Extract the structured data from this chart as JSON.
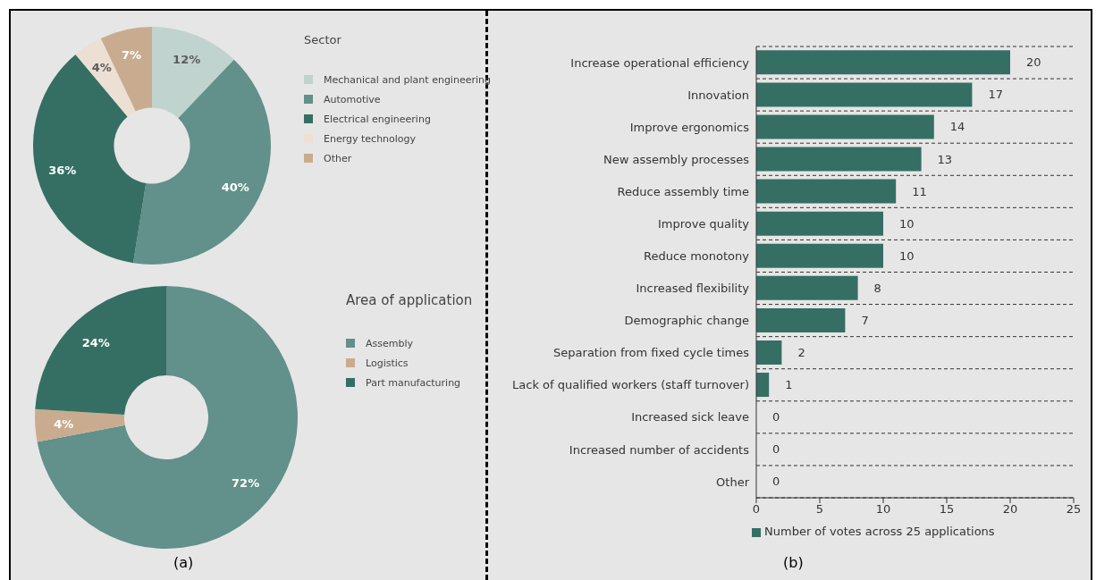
{
  "chart_data": [
    {
      "type": "donut",
      "legend_title": "Sector",
      "categories": [
        "Mechanical and plant engineering",
        "Automotive",
        "Electrical engineering",
        "Energy technology",
        "Other"
      ],
      "values": [
        12,
        40,
        36,
        4,
        7
      ],
      "value_labels": [
        "12%",
        "40%",
        "36%",
        "4%",
        "7%"
      ],
      "colors": [
        "#c0d3cf",
        "#62908a",
        "#356f64",
        "#ecdfd3",
        "#c9ac90"
      ],
      "legend": "right"
    },
    {
      "type": "donut",
      "legend_title": "Area of application",
      "categories": [
        "Assembly",
        "Logistics",
        "Part manufacturing"
      ],
      "values": [
        72,
        4,
        24
      ],
      "value_labels": [
        "72%",
        "4%",
        "24%"
      ],
      "colors": [
        "#62908a",
        "#c9ac90",
        "#356f64"
      ],
      "legend": "right",
      "annotations": [
        "(a)"
      ]
    },
    {
      "type": "bar",
      "orientation": "horizontal",
      "categories": [
        "Increase operational efficiency",
        "Innovation",
        "Improve ergonomics",
        "New assembly processes",
        "Reduce assembly time",
        "Improve quality",
        "Reduce monotony",
        "Increased flexibility",
        "Demographic change",
        "Separation from fixed cycle times",
        "Lack of qualified workers (staff turnover)",
        "Increased sick leave",
        "Increased number of accidents",
        "Other"
      ],
      "series": [
        {
          "name": "Number of votes across 25 applications",
          "color": "#356f64",
          "values": [
            20,
            17,
            14,
            13,
            11,
            10,
            10,
            8,
            7,
            2,
            1,
            0,
            0,
            0
          ]
        }
      ],
      "xlim": [
        0,
        25
      ],
      "xticks": [
        0,
        5,
        10,
        15,
        20,
        25
      ],
      "grid": "y",
      "data_labels": true,
      "legend": "bottom",
      "annotations": [
        "(b)"
      ]
    }
  ]
}
